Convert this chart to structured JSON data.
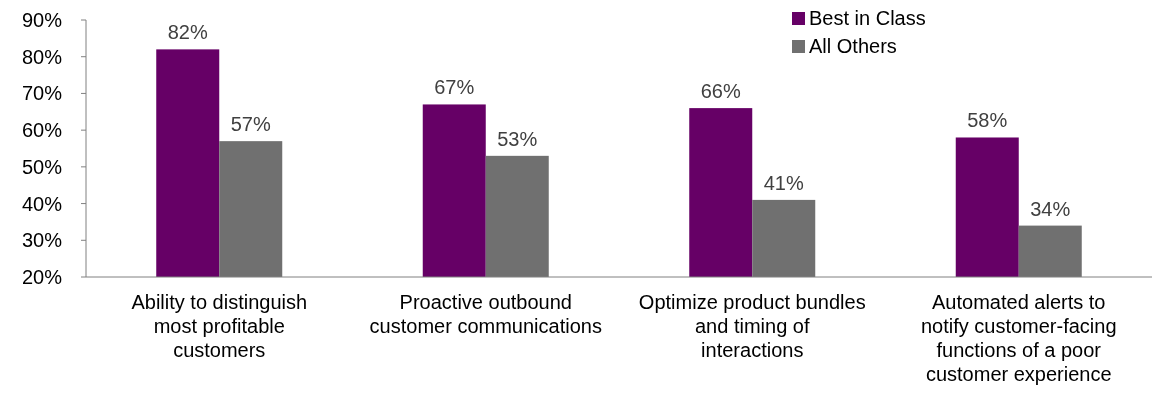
{
  "chart_data": {
    "type": "bar",
    "categories": [
      "Ability to distinguish most profitable customers",
      "Proactive outbound customer communications",
      "Optimize product bundles and timing of interactions",
      "Automated alerts to notify customer-facing functions of a poor customer experience"
    ],
    "series": [
      {
        "name": "Best in Class",
        "color": "#660066",
        "values": [
          82,
          67,
          66,
          58
        ],
        "value_labels": [
          "82%",
          "67%",
          "66%",
          "58%"
        ]
      },
      {
        "name": "All Others",
        "color": "#707070",
        "values": [
          57,
          53,
          41,
          34
        ],
        "value_labels": [
          "57%",
          "53%",
          "41%",
          "34%"
        ]
      }
    ],
    "ylim": [
      20,
      90
    ],
    "yticks": [
      {
        "value": 20,
        "label": "20%"
      },
      {
        "value": 30,
        "label": "30%"
      },
      {
        "value": 40,
        "label": "40%"
      },
      {
        "value": 50,
        "label": "50%"
      },
      {
        "value": 60,
        "label": "60%"
      },
      {
        "value": 70,
        "label": "70%"
      },
      {
        "value": 80,
        "label": "80%"
      },
      {
        "value": 90,
        "label": "90%"
      }
    ],
    "grid": false,
    "legend": "top right"
  }
}
